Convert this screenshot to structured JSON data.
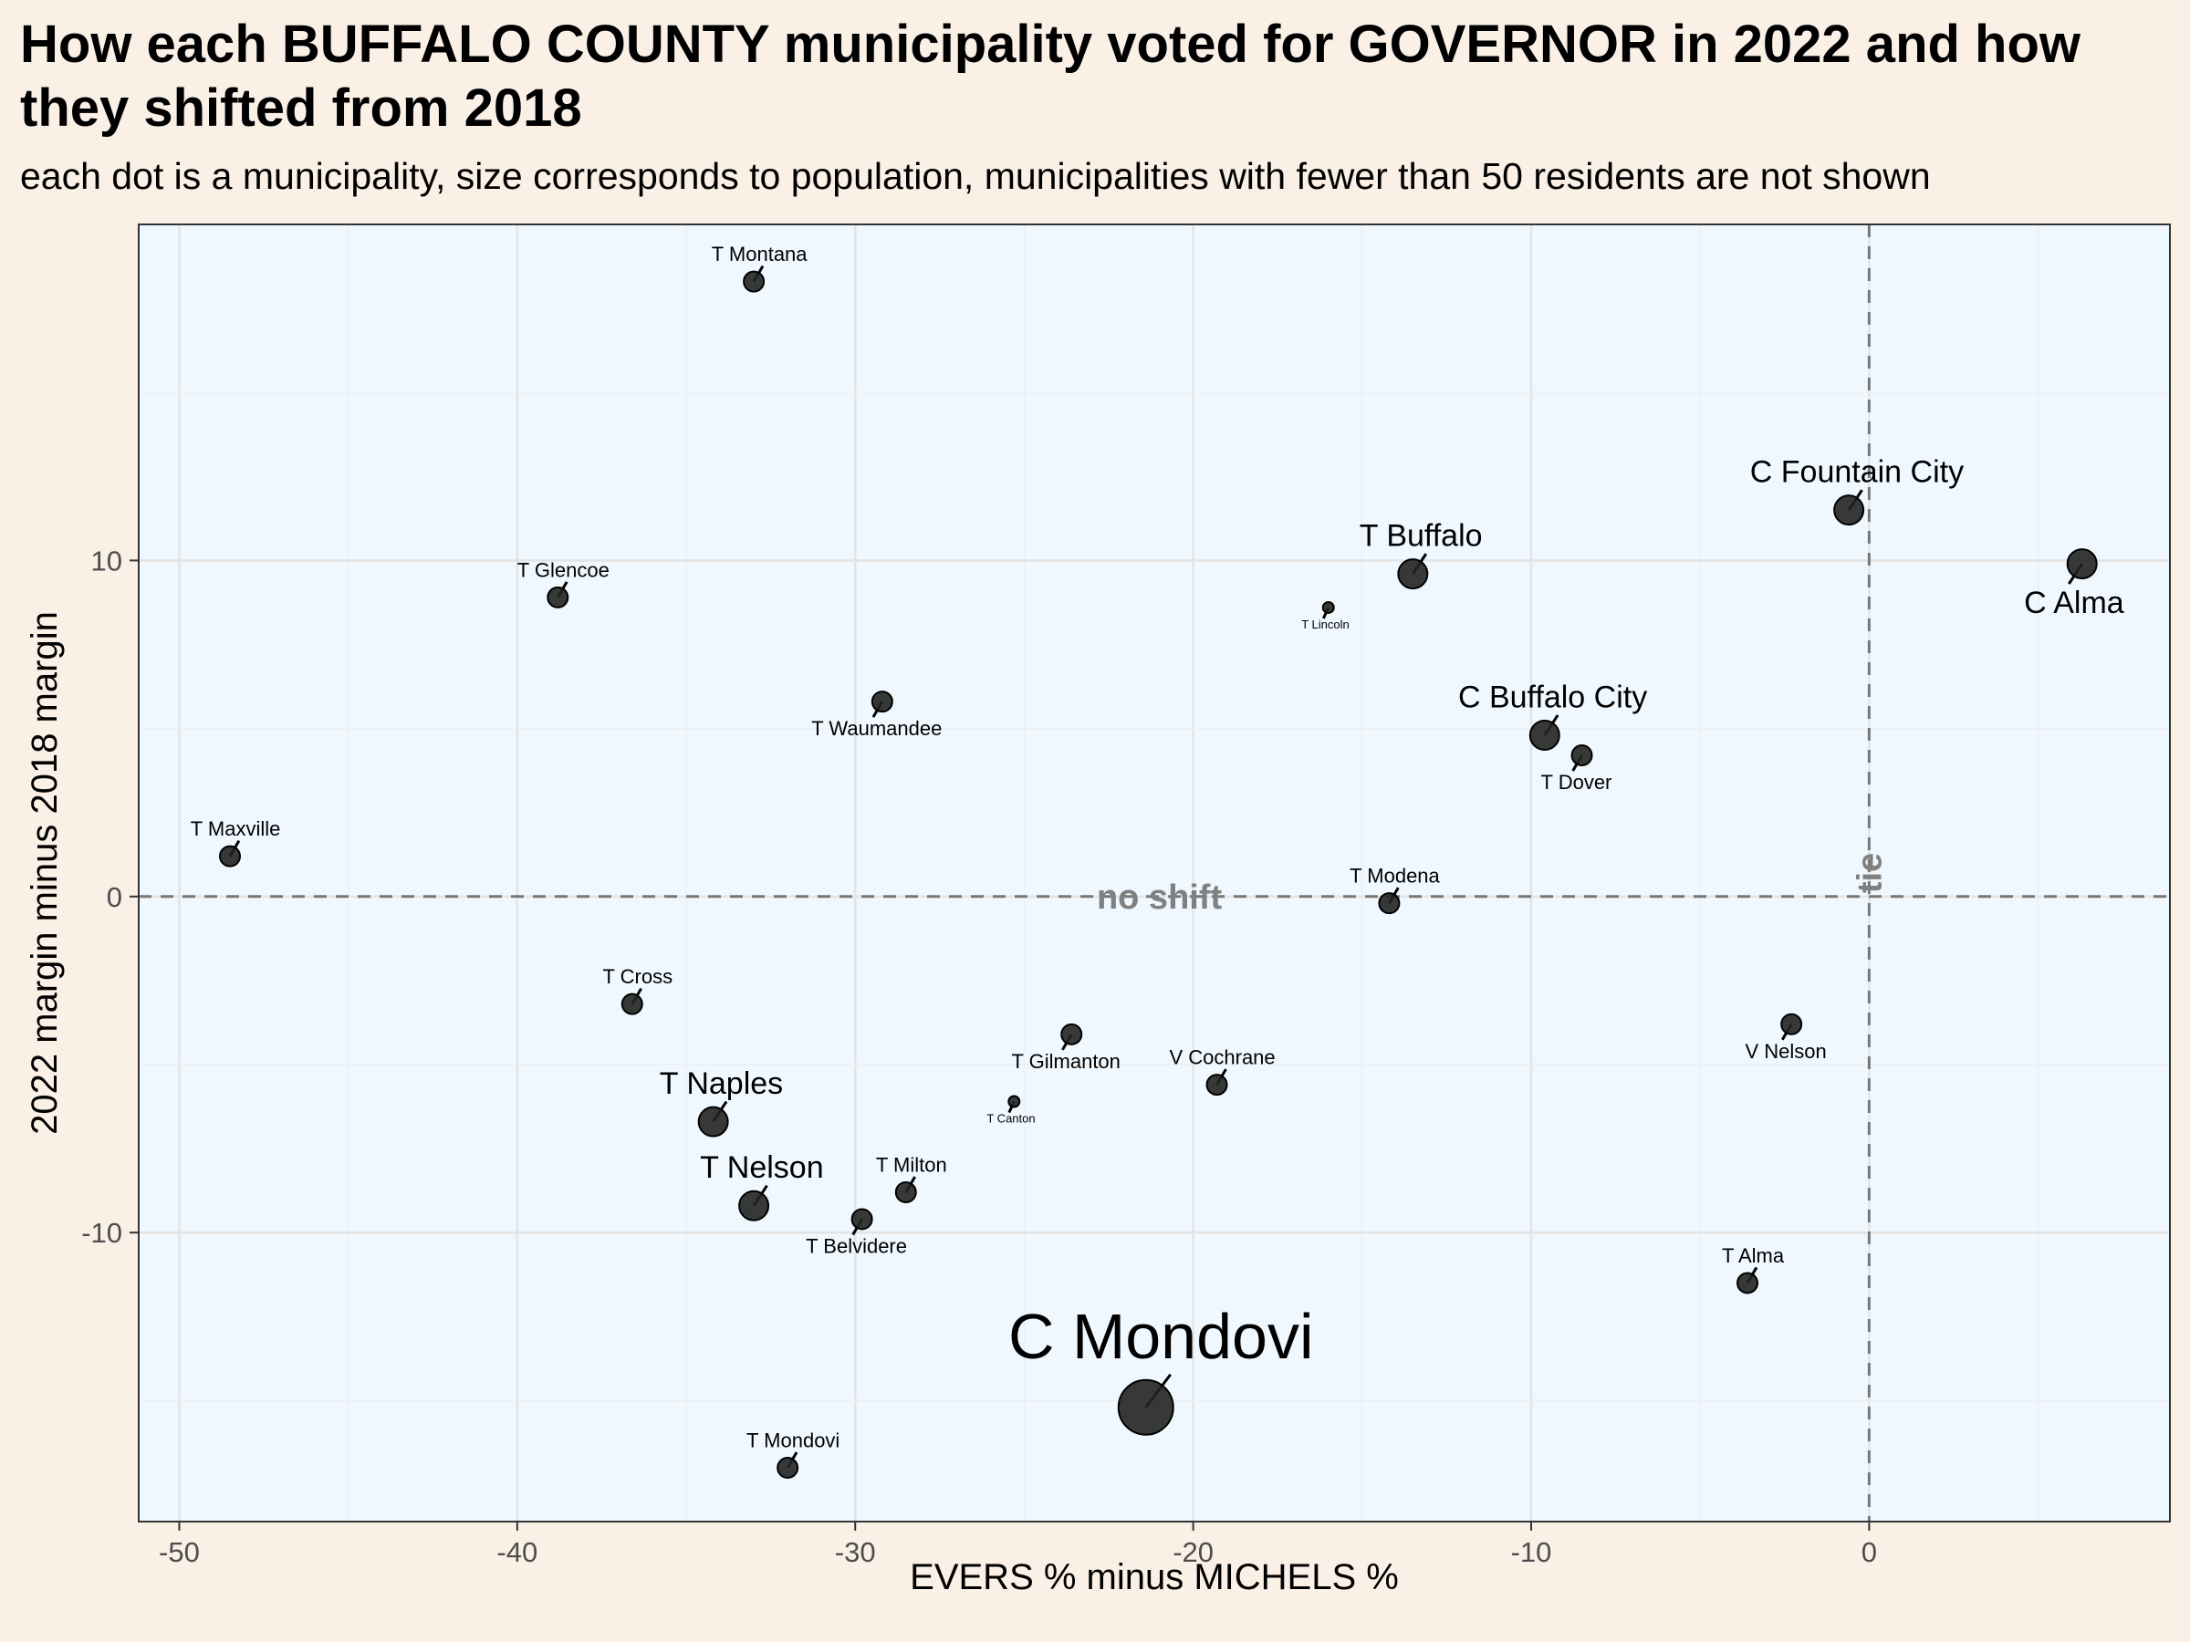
{
  "chart_data": {
    "type": "scatter",
    "title": "How each BUFFALO COUNTY municipality voted for GOVERNOR in 2022 and how they shifted from 2018",
    "subtitle": "each dot is a municipality, size corresponds to population, municipalities with fewer than 50 residents are not shown",
    "xlabel": "EVERS % minus MICHELS %",
    "ylabel": "2022 margin minus 2018 margin",
    "xlim": [
      -51.2,
      8.9
    ],
    "ylim": [
      -18.6,
      20.0
    ],
    "xticks": [
      -50,
      -40,
      -30,
      -20,
      -10,
      0
    ],
    "xtick_labels": [
      "-50",
      "-40",
      "-30",
      "-20",
      "-10",
      "0"
    ],
    "yticks": [
      -10,
      0,
      10
    ],
    "ytick_labels": [
      "-10",
      "0",
      "10"
    ],
    "grid": true,
    "reference_lines": [
      {
        "axis": "y",
        "value": 0,
        "label": "no shift",
        "style": "dashed"
      },
      {
        "axis": "x",
        "value": 0,
        "label": "tie",
        "style": "dashed"
      }
    ],
    "points": [
      {
        "label": "T Montana",
        "x": -33.0,
        "y": 18.3,
        "size": "small",
        "label_side": "above"
      },
      {
        "label": "C Fountain City",
        "x": -0.6,
        "y": 11.5,
        "size": "medium",
        "label_side": "above"
      },
      {
        "label": "C Alma",
        "x": 6.3,
        "y": 9.9,
        "size": "medium",
        "label_side": "below"
      },
      {
        "label": "T Buffalo",
        "x": -13.5,
        "y": 9.6,
        "size": "medium",
        "label_side": "above"
      },
      {
        "label": "T Glencoe",
        "x": -38.8,
        "y": 8.9,
        "size": "small",
        "label_side": "above"
      },
      {
        "label": "T Lincoln",
        "x": -16.0,
        "y": 8.6,
        "size": "tiny",
        "label_side": "below"
      },
      {
        "label": "T Waumandee",
        "x": -29.2,
        "y": 5.8,
        "size": "small",
        "label_side": "below"
      },
      {
        "label": "C Buffalo City",
        "x": -9.6,
        "y": 4.8,
        "size": "medium",
        "label_side": "above"
      },
      {
        "label": "T Dover",
        "x": -8.5,
        "y": 4.2,
        "size": "small",
        "label_side": "below"
      },
      {
        "label": "T Maxville",
        "x": -48.5,
        "y": 1.2,
        "size": "small",
        "label_side": "above"
      },
      {
        "label": "T Modena",
        "x": -14.2,
        "y": -0.2,
        "size": "small",
        "label_side": "above"
      },
      {
        "label": "T Cross",
        "x": -36.6,
        "y": -3.2,
        "size": "small",
        "label_side": "above"
      },
      {
        "label": "V Nelson",
        "x": -2.3,
        "y": -3.8,
        "size": "small",
        "label_side": "below"
      },
      {
        "label": "T Gilmanton",
        "x": -23.6,
        "y": -4.1,
        "size": "small",
        "label_side": "below"
      },
      {
        "label": "V Cochrane",
        "x": -19.3,
        "y": -5.6,
        "size": "small",
        "label_side": "above"
      },
      {
        "label": "T Canton",
        "x": -25.3,
        "y": -6.1,
        "size": "tiny",
        "label_side": "below"
      },
      {
        "label": "T Naples",
        "x": -34.2,
        "y": -6.7,
        "size": "medium",
        "label_side": "above"
      },
      {
        "label": "T Milton",
        "x": -28.5,
        "y": -8.8,
        "size": "small",
        "label_side": "above"
      },
      {
        "label": "T Nelson",
        "x": -33.0,
        "y": -9.2,
        "size": "medium",
        "label_side": "above"
      },
      {
        "label": "T Belvidere",
        "x": -29.8,
        "y": -9.6,
        "size": "small",
        "label_side": "below"
      },
      {
        "label": "T Alma",
        "x": -3.6,
        "y": -11.5,
        "size": "small",
        "label_side": "above"
      },
      {
        "label": "C Mondovi",
        "x": -21.4,
        "y": -15.2,
        "size": "large",
        "label_side": "above"
      },
      {
        "label": "T Mondovi",
        "x": -32.0,
        "y": -17.0,
        "size": "small",
        "label_side": "above"
      }
    ]
  }
}
